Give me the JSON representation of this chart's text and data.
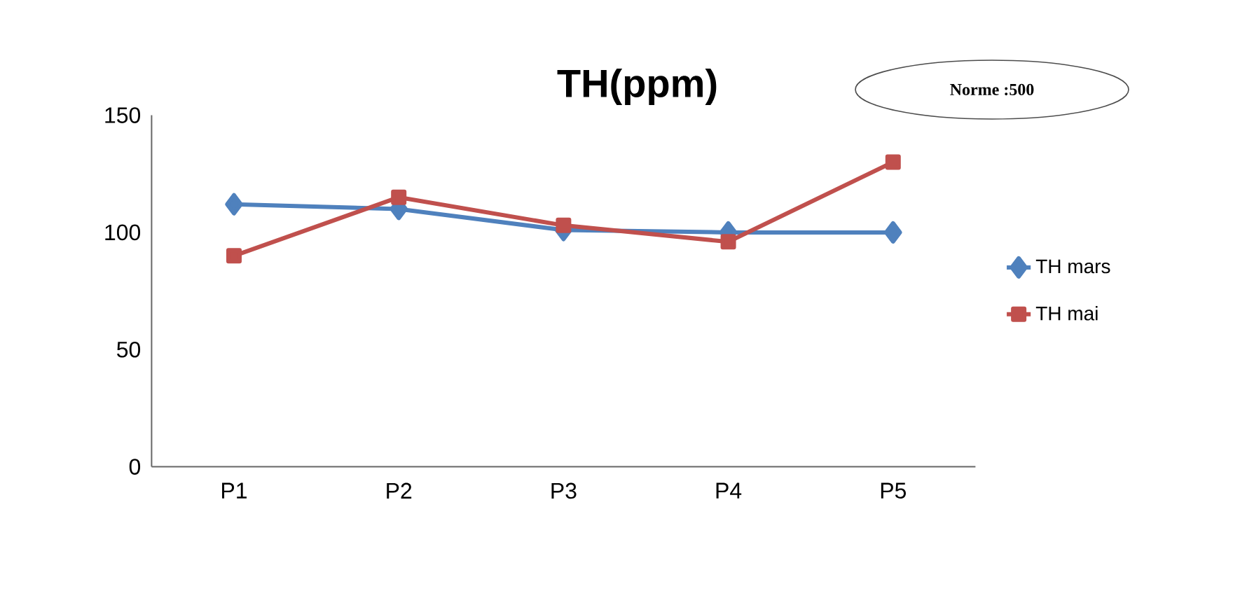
{
  "chart_data": {
    "type": "line",
    "title": "TH(ppm)",
    "annotations": [
      "Norme :500"
    ],
    "categories": [
      "P1",
      "P2",
      "P3",
      "P4",
      "P5"
    ],
    "series": [
      {
        "name": "TH mars",
        "color": "#4f81bd",
        "marker": "diamond",
        "values": [
          112,
          110,
          101,
          100,
          100
        ]
      },
      {
        "name": "TH mai",
        "color": "#c0504d",
        "marker": "square",
        "values": [
          90,
          115,
          103,
          96,
          130
        ]
      }
    ],
    "ylim": [
      0,
      150
    ],
    "yticks": [
      0,
      50,
      100,
      150
    ],
    "grid": false,
    "legend": "right"
  }
}
